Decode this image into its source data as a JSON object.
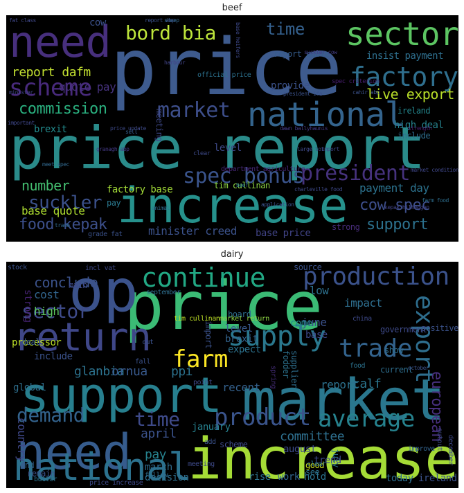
{
  "panels": [
    {
      "title": "beef",
      "words": [
        {
          "t": "price report",
          "c": "#2a8b8a"
        },
        {
          "t": "increase",
          "c": "#26918c"
        },
        {
          "t": "price",
          "c": "#3e5b8e"
        },
        {
          "t": "national",
          "c": "#34648d"
        },
        {
          "t": "need",
          "c": "#472f7d"
        },
        {
          "t": "sector",
          "c": "#5cc562"
        },
        {
          "t": "scheme",
          "c": "#482a7c"
        },
        {
          "t": "factory",
          "c": "#2f6f8e"
        },
        {
          "t": "spec bonus",
          "c": "#3a548c"
        },
        {
          "t": "market",
          "c": "#3d4e8a"
        },
        {
          "t": "president",
          "c": "#46327e"
        },
        {
          "t": "bord bia",
          "c": "#bde53b"
        },
        {
          "t": "food kepak",
          "c": "#3c4f8a"
        },
        {
          "t": "commission",
          "c": "#2ab07f"
        },
        {
          "t": "report dafm",
          "c": "#c3e031"
        },
        {
          "t": "live export",
          "c": "#b8de29"
        },
        {
          "t": "number",
          "c": "#44be70"
        },
        {
          "t": "suckler",
          "c": "#3b518b"
        },
        {
          "t": "support",
          "c": "#2c718e"
        },
        {
          "t": "cow spec",
          "c": "#3d4e8a"
        },
        {
          "t": "time",
          "c": "#34608d"
        },
        {
          "t": "minister creed",
          "c": "#3b528b"
        },
        {
          "t": "payment day",
          "c": "#2c728e"
        },
        {
          "t": "base quote",
          "c": "#addc30"
        },
        {
          "t": "insist payment",
          "c": "#2e6f8e"
        },
        {
          "t": "quote pay",
          "c": "#46327e"
        },
        {
          "t": "report quote",
          "c": "#365d8d"
        },
        {
          "t": "factory base",
          "c": "#a2da37"
        },
        {
          "t": "high deal",
          "c": "#26828e"
        },
        {
          "t": "brexit",
          "c": "#228b8d"
        },
        {
          "t": "ireland",
          "c": "#24878e"
        },
        {
          "t": "include",
          "c": "#2e6e8e"
        },
        {
          "t": "level",
          "c": "#3e4a89"
        },
        {
          "t": "pay",
          "c": "#2a788e"
        },
        {
          "t": "base price",
          "c": "#414487"
        },
        {
          "t": "strong",
          "c": "#472c7a"
        },
        {
          "t": "provide",
          "c": "#3b528b"
        },
        {
          "t": "meeting",
          "c": "#3e4989"
        },
        {
          "t": "cow",
          "c": "#3b518b"
        },
        {
          "t": "tim cullinan",
          "c": "#8fd744"
        },
        {
          "t": "department agriculture",
          "c": "#482878"
        },
        {
          "t": "grade fat",
          "c": "#3b528b"
        },
        {
          "t": "official price",
          "c": "#2c718e"
        },
        {
          "t": "spec criterion",
          "c": "#481f70"
        },
        {
          "t": "clear",
          "c": "#3e4a89"
        },
        {
          "t": "trade",
          "c": "#31688e"
        },
        {
          "t": "important",
          "c": "#3f4788"
        },
        {
          "t": "animal",
          "c": "#2f6c8e"
        },
        {
          "t": "price update",
          "c": "#3e4a89"
        },
        {
          "t": "sell",
          "c": "#355f8d"
        },
        {
          "t": "meet spec",
          "c": "#31688e"
        },
        {
          "t": "fat class",
          "c": "#3f4889"
        },
        {
          "t": "minister",
          "c": "#404588"
        },
        {
          "t": "beef",
          "c": "#2a788e"
        },
        {
          "t": "import",
          "c": "#3f4889"
        },
        {
          "t": "sheep",
          "c": "#31688e"
        },
        {
          "t": "harbour",
          "c": "#414487"
        },
        {
          "t": "dawn ballyhaunis",
          "c": "#443983"
        },
        {
          "t": "application",
          "c": "#3b528b"
        },
        {
          "t": "base heifers",
          "c": "#3e4989"
        },
        {
          "t": "strength",
          "c": "#481a6c"
        },
        {
          "t": "market condition",
          "c": "#3f4788"
        },
        {
          "t": "farm food",
          "c": "#2e6e8e"
        },
        {
          "t": "president ifa",
          "c": "#3b528b"
        },
        {
          "t": "suckler cow",
          "c": "#433e85"
        },
        {
          "t": "report abp",
          "c": "#3b528b"
        },
        {
          "t": "kepak hilheggan",
          "c": "#414487"
        },
        {
          "t": "charleville food",
          "c": "#3e4989"
        },
        {
          "t": "large lot",
          "c": "#3e4a89"
        },
        {
          "t": "cahir abp",
          "c": "#3b528b"
        },
        {
          "t": "granagh abp",
          "c": "#443983"
        },
        {
          "t": "euro",
          "c": "#404588"
        }
      ]
    },
    {
      "title": "dairy",
      "words": [
        {
          "t": "price",
          "c": "#3bbb75"
        },
        {
          "t": "market",
          "c": "#2a778e"
        },
        {
          "t": "support",
          "c": "#277f8e"
        },
        {
          "t": "increase",
          "c": "#a5db36"
        },
        {
          "t": "op",
          "c": "#3b528b"
        },
        {
          "t": "need",
          "c": "#365c8d"
        },
        {
          "t": "national",
          "c": "#2c728e"
        },
        {
          "t": "return",
          "c": "#3f4788"
        },
        {
          "t": "continue",
          "c": "#22a884"
        },
        {
          "t": "supply",
          "c": "#2a788e"
        },
        {
          "t": "production",
          "c": "#3b528b"
        },
        {
          "t": "product",
          "c": "#3a548c"
        },
        {
          "t": "farm",
          "c": "#fde725"
        },
        {
          "t": "average",
          "c": "#26828e"
        },
        {
          "t": "trade",
          "c": "#33638d"
        },
        {
          "t": "export",
          "c": "#2e6e8e"
        },
        {
          "t": "demand",
          "c": "#33638d"
        },
        {
          "t": "time",
          "c": "#3e4a89"
        },
        {
          "t": "sector",
          "c": "#3e4a89"
        },
        {
          "t": "european",
          "c": "#472f7d"
        },
        {
          "t": "glanbia",
          "c": "#2c728e"
        },
        {
          "t": "ornua",
          "c": "#38598c"
        },
        {
          "t": "ppi",
          "c": "#2c728e"
        },
        {
          "t": "conclude",
          "c": "#3b528b"
        },
        {
          "t": "cost",
          "c": "#32658e"
        },
        {
          "t": "high",
          "c": "#5ec962"
        },
        {
          "t": "calf",
          "c": "#2b758e"
        },
        {
          "t": "committee",
          "c": "#2e6f8e"
        },
        {
          "t": "april",
          "c": "#3b528b"
        },
        {
          "t": "recent",
          "c": "#34618d"
        },
        {
          "t": "report",
          "c": "#2c718e"
        },
        {
          "t": "june",
          "c": "#3b528b"
        },
        {
          "t": "low",
          "c": "#2d708e"
        },
        {
          "t": "come",
          "c": "#24868e"
        },
        {
          "t": "base",
          "c": "#3e4989"
        },
        {
          "t": "impact",
          "c": "#2e6e8e"
        },
        {
          "t": "pay",
          "c": "#26828e"
        },
        {
          "t": "march",
          "c": "#2f6c8e"
        },
        {
          "t": "january",
          "c": "#27808e"
        },
        {
          "t": "august",
          "c": "#3e4c8a"
        },
        {
          "t": "country",
          "c": "#3f4889"
        },
        {
          "t": "global",
          "c": "#2e6f8e"
        },
        {
          "t": "processor",
          "c": "#bbdf27"
        },
        {
          "t": "include",
          "c": "#3b528b"
        },
        {
          "t": "level",
          "c": "#38598c"
        },
        {
          "t": "brexit",
          "c": "#33638d"
        },
        {
          "t": "expect",
          "c": "#2c728e"
        },
        {
          "t": "import",
          "c": "#3b528b"
        },
        {
          "t": "scheme",
          "c": "#3e4a89"
        },
        {
          "t": "decision",
          "c": "#2e6e8e"
        },
        {
          "t": "remain",
          "c": "#3b528b"
        },
        {
          "t": "rise",
          "c": "#2c728e"
        },
        {
          "t": "work",
          "c": "#32658e"
        },
        {
          "t": "hold",
          "c": "#2c728e"
        },
        {
          "t": "trend",
          "c": "#3e4989"
        },
        {
          "t": "today",
          "c": "#2e6e8e"
        },
        {
          "t": "ireland",
          "c": "#3b528b"
        },
        {
          "t": "good",
          "c": "#cae11f"
        },
        {
          "t": "see",
          "c": "#2c728e"
        },
        {
          "t": "show",
          "c": "#2e6e8e"
        },
        {
          "t": "positive",
          "c": "#3b528b"
        },
        {
          "t": "government",
          "c": "#3e4a89"
        },
        {
          "t": "source",
          "c": "#3b528b"
        },
        {
          "t": "board",
          "c": "#2e6e8e"
        },
        {
          "t": "main",
          "c": "#3e4a89"
        },
        {
          "t": "strong",
          "c": "#482475"
        },
        {
          "t": "tim cullinan",
          "c": "#bddf26"
        },
        {
          "t": "market return",
          "c": "#8fd744"
        },
        {
          "t": "china",
          "c": "#3e4a89"
        },
        {
          "t": "improve",
          "c": "#33638d"
        },
        {
          "t": "output",
          "c": "#3e4a89"
        },
        {
          "t": "december",
          "c": "#3e4989"
        },
        {
          "t": "current",
          "c": "#2e6e8e"
        },
        {
          "t": "october",
          "c": "#3b528b"
        },
        {
          "t": "spring",
          "c": "#472f7d"
        },
        {
          "t": "fodder",
          "c": "#2c728e"
        },
        {
          "t": "supplier",
          "c": "#2e6e8e"
        },
        {
          "t": "july",
          "c": "#2c728e"
        },
        {
          "t": "end",
          "c": "#33638d"
        },
        {
          "t": "deal",
          "c": "#38598c"
        },
        {
          "t": "cut",
          "c": "#3b528b"
        },
        {
          "t": "butter",
          "c": "#2c728e"
        },
        {
          "t": "price increase",
          "c": "#3e4a89"
        },
        {
          "t": "stock",
          "c": "#3b528b"
        },
        {
          "t": "incl vat",
          "c": "#3e4a89"
        },
        {
          "t": "september",
          "c": "#2e6e8e"
        },
        {
          "t": "meeting",
          "c": "#3e4a89"
        },
        {
          "t": "food",
          "c": "#2c728e"
        },
        {
          "t": "fall",
          "c": "#3b528b"
        },
        {
          "t": "add",
          "c": "#3b528b"
        },
        {
          "t": "follow",
          "c": "#2e6e8e"
        },
        {
          "t": "point",
          "c": "#3e4a89"
        },
        {
          "t": "clear",
          "c": "#2c728e"
        }
      ]
    }
  ]
}
